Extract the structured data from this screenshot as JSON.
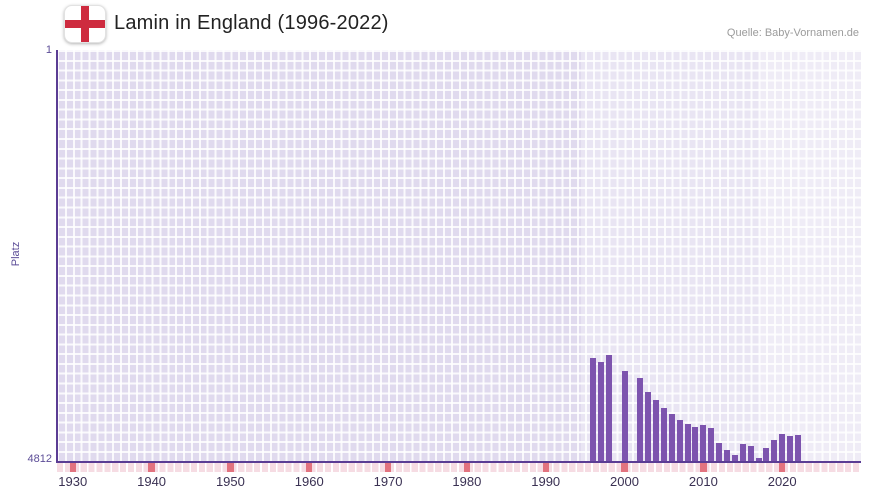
{
  "header": {
    "title": "Lamin in England (1996-2022)",
    "source": "Quelle: Baby-Vornamen.de",
    "flag_icon": "england-flag"
  },
  "chart_data": {
    "type": "bar",
    "title": "Lamin in England (1996-2022)",
    "xlabel": "",
    "ylabel": "Platz",
    "y_axis": {
      "min": 1,
      "max": 4812,
      "inverted": true,
      "top_label": "1",
      "bottom_label": "4812"
    },
    "x_domain": [
      1928,
      2030
    ],
    "x_ticks": [
      1930,
      1940,
      1950,
      1960,
      1970,
      1980,
      1990,
      2000,
      2010,
      2020
    ],
    "grid": true,
    "legend": "none",
    "note": "Bars show yearly rank (Platz) of the name Lamin; taller bar = better rank; null = not ranked that year",
    "years": [
      1996,
      1997,
      1998,
      1999,
      2000,
      2001,
      2002,
      2003,
      2004,
      2005,
      2006,
      2007,
      2008,
      2009,
      2010,
      2011,
      2012,
      2013,
      2014,
      2015,
      2016,
      2017,
      2018,
      2019,
      2020,
      2021,
      2022
    ],
    "values": [
      3610,
      3650,
      3570,
      null,
      3760,
      null,
      3840,
      4000,
      4100,
      4190,
      4260,
      4330,
      4380,
      4410,
      4390,
      4425,
      4600,
      4680,
      4740,
      4610,
      4635,
      4775,
      4660,
      4565,
      4495,
      4520,
      4505
    ]
  },
  "colors": {
    "bar_color": "#7d54ae",
    "axis_color": "#5b3d94",
    "grid_bg": "#e0daee",
    "tick_label_color": "#3a3153",
    "y_label_color": "#5c4d97",
    "source_color": "#9b9b9b",
    "title_color": "#222222",
    "timeline_pink": "#f6dce3",
    "timeline_red": "#e2737f",
    "flag_red": "#ce2b3f"
  }
}
